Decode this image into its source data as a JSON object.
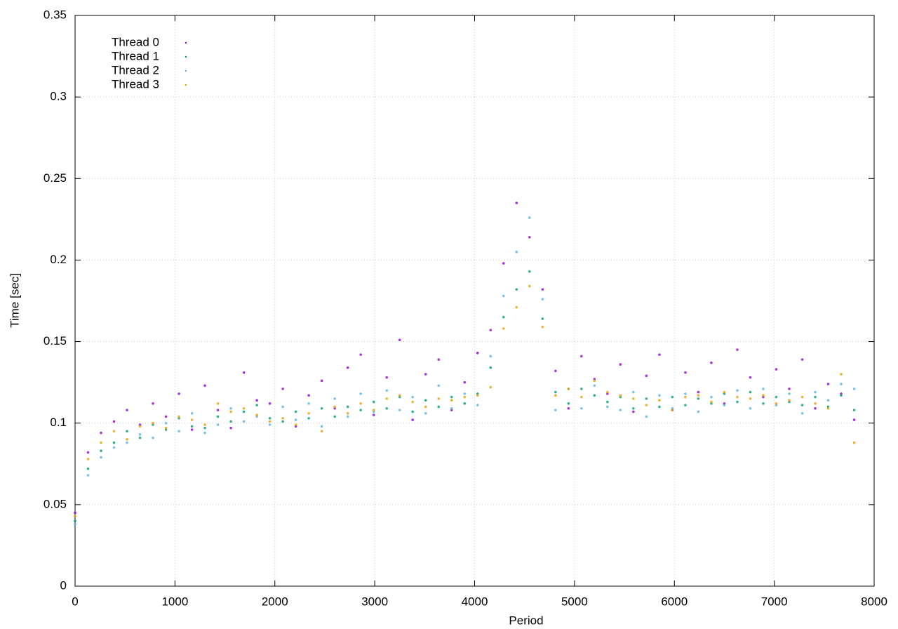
{
  "chart_data": {
    "type": "scatter",
    "x_label": "Period",
    "y_label": "Time [sec]",
    "xlim": [
      0,
      8000
    ],
    "ylim": [
      0,
      0.35
    ],
    "xticks": [
      0,
      1000,
      2000,
      3000,
      4000,
      5000,
      6000,
      7000,
      8000
    ],
    "yticks": [
      0,
      0.05,
      0.1,
      0.15,
      0.2,
      0.25,
      0.3,
      0.35
    ],
    "grid": true,
    "legend": "upper left",
    "x": [
      0,
      130,
      260,
      390,
      520,
      650,
      780,
      910,
      1040,
      1170,
      1300,
      1430,
      1560,
      1690,
      1820,
      1950,
      2080,
      2210,
      2340,
      2470,
      2600,
      2730,
      2860,
      2990,
      3120,
      3250,
      3380,
      3510,
      3640,
      3770,
      3900,
      4030,
      4160,
      4290,
      4420,
      4550,
      4680,
      4810,
      4940,
      5070,
      5200,
      5330,
      5460,
      5590,
      5720,
      5850,
      5980,
      6110,
      6240,
      6370,
      6500,
      6630,
      6760,
      6890,
      7020,
      7150,
      7280,
      7410,
      7540,
      7670,
      7800
    ],
    "series": [
      {
        "name": "Thread 0",
        "color": "#9400d3",
        "values": [
          0.045,
          0.082,
          0.094,
          0.101,
          0.108,
          0.099,
          0.112,
          0.104,
          0.118,
          0.096,
          0.123,
          0.108,
          0.097,
          0.131,
          0.114,
          0.112,
          0.121,
          0.098,
          0.117,
          0.126,
          0.109,
          0.134,
          0.142,
          0.105,
          0.128,
          0.151,
          0.102,
          0.13,
          0.139,
          0.108,
          0.125,
          0.143,
          0.157,
          0.198,
          0.235,
          0.214,
          0.182,
          0.132,
          0.109,
          0.141,
          0.127,
          0.118,
          0.136,
          0.107,
          0.129,
          0.142,
          0.108,
          0.131,
          0.119,
          0.137,
          0.112,
          0.145,
          0.128,
          0.116,
          0.133,
          0.121,
          0.139,
          0.109,
          0.124,
          0.118,
          0.102
        ]
      },
      {
        "name": "Thread 1",
        "color": "#009e73",
        "values": [
          0.04,
          0.072,
          0.083,
          0.088,
          0.095,
          0.091,
          0.099,
          0.096,
          0.103,
          0.098,
          0.097,
          0.104,
          0.101,
          0.107,
          0.111,
          0.103,
          0.101,
          0.107,
          0.103,
          0.109,
          0.104,
          0.11,
          0.108,
          0.113,
          0.109,
          0.116,
          0.107,
          0.114,
          0.11,
          0.116,
          0.112,
          0.118,
          0.134,
          0.165,
          0.182,
          0.193,
          0.164,
          0.119,
          0.112,
          0.121,
          0.117,
          0.113,
          0.116,
          0.109,
          0.115,
          0.11,
          0.116,
          0.111,
          0.115,
          0.112,
          0.118,
          0.113,
          0.119,
          0.112,
          0.116,
          0.113,
          0.111,
          0.116,
          0.11,
          0.117,
          0.108
        ]
      },
      {
        "name": "Thread 2",
        "color": "#56b4e9",
        "values": [
          0.038,
          0.068,
          0.079,
          0.085,
          0.088,
          0.093,
          0.091,
          0.1,
          0.095,
          0.106,
          0.094,
          0.099,
          0.109,
          0.101,
          0.104,
          0.099,
          0.11,
          0.102,
          0.112,
          0.098,
          0.115,
          0.104,
          0.118,
          0.107,
          0.12,
          0.108,
          0.116,
          0.106,
          0.123,
          0.109,
          0.118,
          0.111,
          0.141,
          0.178,
          0.205,
          0.226,
          0.176,
          0.108,
          0.121,
          0.109,
          0.123,
          0.11,
          0.108,
          0.119,
          0.104,
          0.117,
          0.109,
          0.118,
          0.107,
          0.116,
          0.111,
          0.12,
          0.109,
          0.121,
          0.111,
          0.118,
          0.106,
          0.119,
          0.114,
          0.124,
          0.121
        ]
      },
      {
        "name": "Thread 3",
        "color": "#e69f00",
        "values": [
          0.043,
          0.078,
          0.088,
          0.095,
          0.09,
          0.098,
          0.1,
          0.097,
          0.104,
          0.102,
          0.099,
          0.112,
          0.107,
          0.109,
          0.105,
          0.101,
          0.103,
          0.099,
          0.106,
          0.095,
          0.11,
          0.106,
          0.112,
          0.108,
          0.115,
          0.117,
          0.113,
          0.11,
          0.115,
          0.114,
          0.116,
          0.117,
          0.122,
          0.158,
          0.171,
          0.184,
          0.159,
          0.117,
          0.121,
          0.116,
          0.126,
          0.119,
          0.117,
          0.115,
          0.111,
          0.114,
          0.108,
          0.116,
          0.117,
          0.113,
          0.119,
          0.116,
          0.115,
          0.117,
          0.112,
          0.114,
          0.116,
          0.112,
          0.109,
          0.13,
          0.088
        ]
      }
    ]
  }
}
